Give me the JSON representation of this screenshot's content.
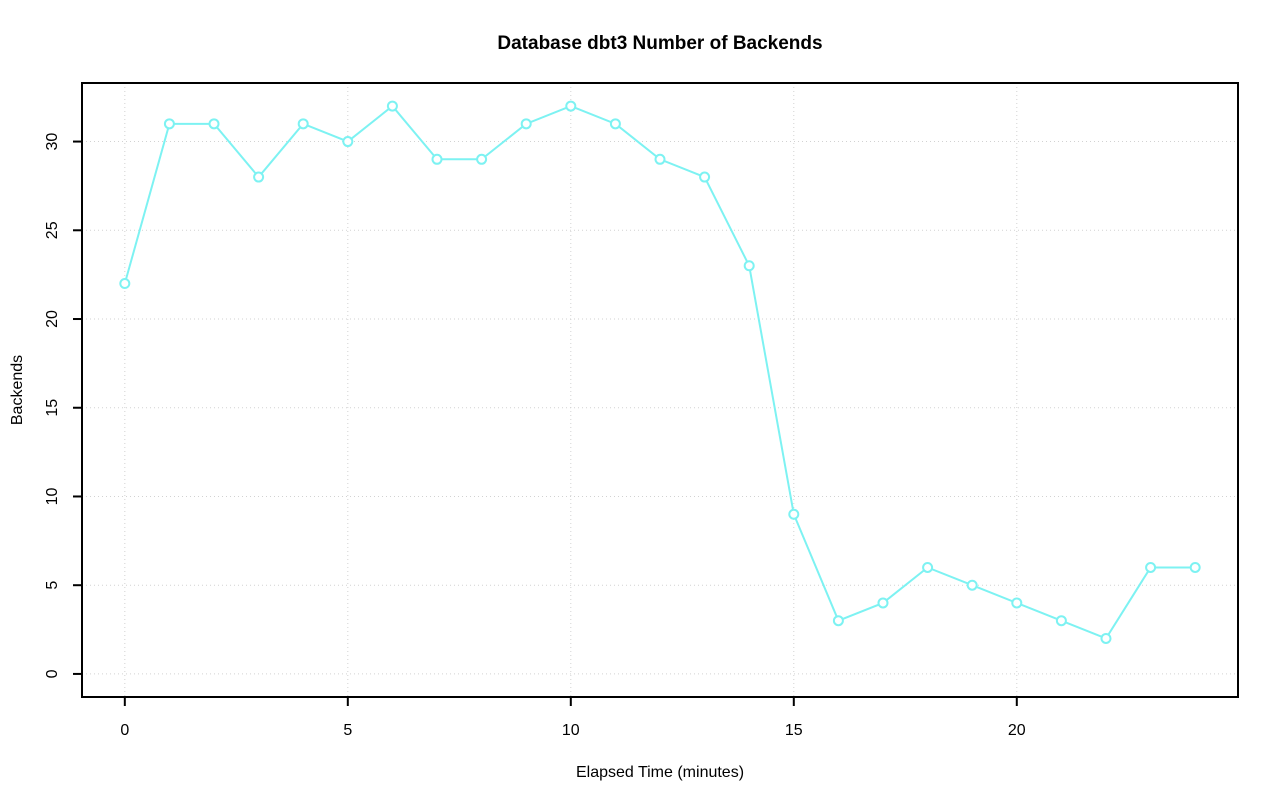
{
  "figure": {
    "background_color": "#ffffff"
  },
  "chart_data": {
    "type": "line",
    "title": "Database dbt3 Number of Backends",
    "xlabel": "Elapsed Time (minutes)",
    "ylabel": "Backends",
    "x": [
      0,
      1,
      2,
      3,
      4,
      5,
      6,
      7,
      8,
      9,
      10,
      11,
      12,
      13,
      14,
      15,
      16,
      17,
      18,
      19,
      20,
      21,
      22,
      23,
      24
    ],
    "series": [
      {
        "name": "backends",
        "values": [
          22,
          31,
          31,
          28,
          31,
          30,
          32,
          29,
          29,
          31,
          32,
          31,
          29,
          28,
          23,
          9,
          3,
          4,
          6,
          5,
          4,
          3,
          2,
          6,
          6
        ]
      }
    ],
    "x_ticks": [
      0,
      5,
      10,
      15,
      20
    ],
    "y_ticks": [
      0,
      5,
      10,
      15,
      20,
      25,
      30
    ],
    "xlim": [
      -0.96,
      24.96
    ],
    "ylim": [
      -1.3,
      33.3
    ],
    "grid": true,
    "legend": "none",
    "marker": "open-circle",
    "line_color": "#7df2f2",
    "marker_fill": "#ffffff",
    "grid_color": "#d2d2d2",
    "axis_color": "#000000",
    "text_color": "#000000"
  }
}
